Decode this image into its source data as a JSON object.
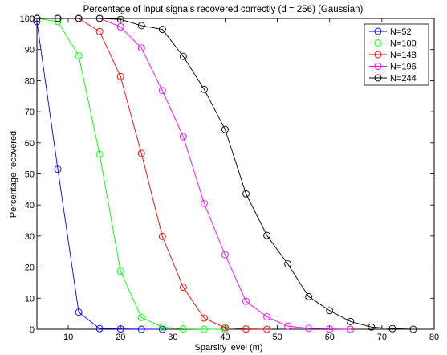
{
  "chart_data": {
    "type": "line",
    "title": "Percentage of input signals recovered correctly (d = 256) (Gaussian)",
    "xlabel": "Sparsity level (m)",
    "ylabel": "Percentage recovered",
    "xlim": [
      4,
      80
    ],
    "ylim": [
      0,
      100
    ],
    "xticks": [
      10,
      20,
      30,
      40,
      50,
      60,
      70,
      80
    ],
    "yticks": [
      0,
      10,
      20,
      30,
      40,
      50,
      60,
      70,
      80,
      90,
      100
    ],
    "grid": false,
    "legend_position": "top-right",
    "marker": "circle",
    "series": [
      {
        "name": "N=52",
        "color": "#0000ff",
        "x": [
          4,
          8,
          12,
          16,
          20,
          24,
          28
        ],
        "y": [
          99,
          51.5,
          5.5,
          0.2,
          0.1,
          0,
          0
        ]
      },
      {
        "name": "N=100",
        "color": "#00ff00",
        "x": [
          4,
          8,
          12,
          16,
          20,
          24,
          28,
          32,
          36,
          40
        ],
        "y": [
          100,
          99,
          88,
          56.3,
          18.7,
          3.8,
          0.7,
          0.1,
          0,
          0
        ]
      },
      {
        "name": "N=148",
        "color": "#ff0000",
        "x": [
          4,
          8,
          12,
          16,
          20,
          24,
          28,
          32,
          36,
          40,
          44,
          48
        ],
        "y": [
          100,
          100,
          100,
          95.8,
          81.3,
          56.6,
          29.9,
          13.5,
          3.6,
          0.5,
          0.1,
          0
        ]
      },
      {
        "name": "N=196",
        "color": "#ff00ff",
        "x": [
          4,
          8,
          12,
          16,
          20,
          24,
          28,
          32,
          36,
          40,
          44,
          48,
          52,
          56,
          60,
          64
        ],
        "y": [
          100,
          100,
          100,
          100,
          97.3,
          90.5,
          76.8,
          62,
          40.5,
          24,
          9,
          4,
          1,
          0.3,
          0.1,
          0
        ]
      },
      {
        "name": "N=244",
        "color": "#000000",
        "x": [
          4,
          8,
          12,
          16,
          20,
          24,
          28,
          32,
          36,
          40,
          44,
          48,
          52,
          56,
          60,
          64,
          68,
          72,
          76
        ],
        "y": [
          100,
          100,
          100,
          100,
          99.7,
          97.7,
          96.5,
          87.8,
          77.2,
          64.3,
          43.6,
          30.2,
          21,
          10.5,
          6,
          2.5,
          0.7,
          0.2,
          0
        ]
      }
    ]
  }
}
